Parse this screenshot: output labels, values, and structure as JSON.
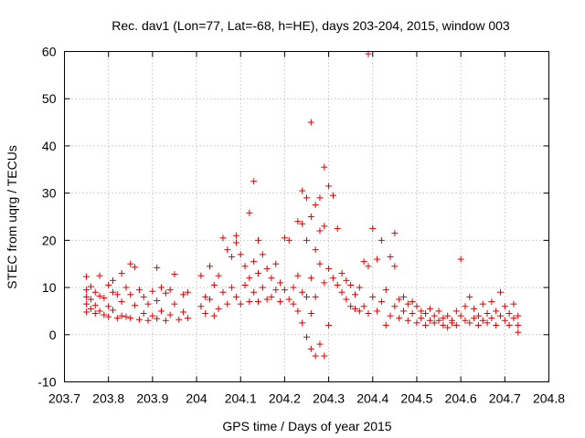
{
  "chart_data": {
    "type": "scatter",
    "title": "Rec. dav1 (Lon=77, Lat=-68, h=HE), days 203-204, 2015, window 003",
    "xlabel": "GPS time / Days of year 2015",
    "ylabel": "STEC from uqrg / TECUs",
    "xlim": [
      203.7,
      204.8
    ],
    "ylim": [
      -10,
      60
    ],
    "x_ticks": [
      203.7,
      203.8,
      203.9,
      204.0,
      204.1,
      204.2,
      204.3,
      204.4,
      204.5,
      204.6,
      204.7,
      204.8
    ],
    "x_tick_labels": [
      "203.7",
      "203.8",
      "203.9",
      "204",
      "204.1",
      "204.2",
      "204.3",
      "204.4",
      "204.5",
      "204.6",
      "204.7",
      "204.8"
    ],
    "y_ticks": [
      -10,
      0,
      10,
      20,
      30,
      40,
      50,
      60
    ],
    "y_tick_labels": [
      "-10",
      "0",
      "10",
      "20",
      "30",
      "40",
      "50",
      "60"
    ],
    "grid": true,
    "marker": "plus",
    "color": "#dd0000",
    "series": [
      {
        "points": [
          [
            203.75,
            12.3
          ],
          [
            203.75,
            9.5
          ],
          [
            203.75,
            8.0
          ],
          [
            203.75,
            6.5
          ],
          [
            203.75,
            4.8
          ],
          [
            203.76,
            10.2
          ],
          [
            203.76,
            7.5
          ],
          [
            203.76,
            5.5
          ],
          [
            203.77,
            9.0
          ],
          [
            203.77,
            6.2
          ],
          [
            203.77,
            4.5
          ],
          [
            203.78,
            12.5
          ],
          [
            203.78,
            8.2
          ],
          [
            203.78,
            5.0
          ],
          [
            203.79,
            7.8
          ],
          [
            203.79,
            4.2
          ],
          [
            203.8,
            10.5
          ],
          [
            203.8,
            6.0
          ],
          [
            203.8,
            3.8
          ],
          [
            203.81,
            11.5
          ],
          [
            203.81,
            9.0
          ],
          [
            203.81,
            5.2
          ],
          [
            203.82,
            8.5
          ],
          [
            203.82,
            3.5
          ],
          [
            203.83,
            13.0
          ],
          [
            203.83,
            7.0
          ],
          [
            203.83,
            4.0
          ],
          [
            203.84,
            10.0
          ],
          [
            203.84,
            3.8
          ],
          [
            203.85,
            15.0
          ],
          [
            203.85,
            8.5
          ],
          [
            203.85,
            3.5
          ],
          [
            203.86,
            14.3
          ],
          [
            203.86,
            6.2
          ],
          [
            203.87,
            9.5
          ],
          [
            203.87,
            3.2
          ],
          [
            203.88,
            8.0
          ],
          [
            203.88,
            4.5
          ],
          [
            203.89,
            6.5
          ],
          [
            203.89,
            3.0
          ],
          [
            203.9,
            9.2
          ],
          [
            203.9,
            4.0
          ],
          [
            203.91,
            14.2
          ],
          [
            203.91,
            7.2
          ],
          [
            203.91,
            3.4
          ],
          [
            203.92,
            10.0
          ],
          [
            203.92,
            5.0
          ],
          [
            203.93,
            8.8
          ],
          [
            203.93,
            3.0
          ],
          [
            203.94,
            9.5
          ],
          [
            203.94,
            4.2
          ],
          [
            203.95,
            12.8
          ],
          [
            203.95,
            6.5
          ],
          [
            203.96,
            3.2
          ],
          [
            203.97,
            8.5
          ],
          [
            203.97,
            4.8
          ],
          [
            203.98,
            9.0
          ],
          [
            203.98,
            3.5
          ],
          [
            204.01,
            12.5
          ],
          [
            204.01,
            6.0
          ],
          [
            204.02,
            8.0
          ],
          [
            204.02,
            4.5
          ],
          [
            204.03,
            14.5
          ],
          [
            204.03,
            7.5
          ],
          [
            204.04,
            10.5
          ],
          [
            204.04,
            4.0
          ],
          [
            204.05,
            12.5
          ],
          [
            204.05,
            5.5
          ],
          [
            204.06,
            20.5
          ],
          [
            204.06,
            9.0
          ],
          [
            204.07,
            18.0
          ],
          [
            204.07,
            6.5
          ],
          [
            204.08,
            16.5
          ],
          [
            204.08,
            10.0
          ],
          [
            204.09,
            21.0
          ],
          [
            204.09,
            19.5
          ],
          [
            204.09,
            8.0
          ],
          [
            204.1,
            17.0
          ],
          [
            204.1,
            6.5
          ],
          [
            204.11,
            14.5
          ],
          [
            204.11,
            10.5
          ],
          [
            204.12,
            25.8
          ],
          [
            204.12,
            12.0
          ],
          [
            204.12,
            7.0
          ],
          [
            204.13,
            32.5
          ],
          [
            204.13,
            15.5
          ],
          [
            204.13,
            9.0
          ],
          [
            204.14,
            20.0
          ],
          [
            204.14,
            13.0
          ],
          [
            204.14,
            7.0
          ],
          [
            204.15,
            17.0
          ],
          [
            204.15,
            10.0
          ],
          [
            204.16,
            14.0
          ],
          [
            204.16,
            7.5
          ],
          [
            204.17,
            12.0
          ],
          [
            204.17,
            8.0
          ],
          [
            204.18,
            15.0
          ],
          [
            204.18,
            9.5
          ],
          [
            204.19,
            11.0
          ],
          [
            204.19,
            7.0
          ],
          [
            204.2,
            20.5
          ],
          [
            204.2,
            9.5
          ],
          [
            204.21,
            20.0
          ],
          [
            204.21,
            7.5
          ],
          [
            204.22,
            10.0
          ],
          [
            204.22,
            6.5
          ],
          [
            204.23,
            24.0
          ],
          [
            204.23,
            12.5
          ],
          [
            204.23,
            5.0
          ],
          [
            204.24,
            30.5
          ],
          [
            204.24,
            23.5
          ],
          [
            204.24,
            9.0
          ],
          [
            204.24,
            2.5
          ],
          [
            204.25,
            29.0
          ],
          [
            204.25,
            20.0
          ],
          [
            204.25,
            8.0
          ],
          [
            204.25,
            -0.5
          ],
          [
            204.26,
            45.0
          ],
          [
            204.26,
            25.0
          ],
          [
            204.26,
            12.0
          ],
          [
            204.26,
            4.5
          ],
          [
            204.26,
            -3.0
          ],
          [
            204.27,
            27.5
          ],
          [
            204.27,
            18.0
          ],
          [
            204.27,
            8.0
          ],
          [
            204.27,
            -4.5
          ],
          [
            204.28,
            29.0
          ],
          [
            204.28,
            22.0
          ],
          [
            204.28,
            15.0
          ],
          [
            204.28,
            -2.0
          ],
          [
            204.29,
            35.5
          ],
          [
            204.29,
            23.0
          ],
          [
            204.29,
            11.0
          ],
          [
            204.29,
            -4.5
          ],
          [
            204.3,
            31.5
          ],
          [
            204.3,
            14.0
          ],
          [
            204.3,
            2.0
          ],
          [
            204.31,
            29.5
          ],
          [
            204.31,
            12.0
          ],
          [
            204.32,
            22.5
          ],
          [
            204.32,
            10.5
          ],
          [
            204.33,
            13.0
          ],
          [
            204.33,
            9.0
          ],
          [
            204.34,
            11.5
          ],
          [
            204.34,
            7.5
          ],
          [
            204.35,
            10.5
          ],
          [
            204.35,
            6.0
          ],
          [
            204.36,
            8.5
          ],
          [
            204.36,
            5.5
          ],
          [
            204.37,
            10.0
          ],
          [
            204.37,
            5.0
          ],
          [
            204.38,
            15.5
          ],
          [
            204.38,
            6.0
          ],
          [
            204.39,
            59.5
          ],
          [
            204.39,
            14.5
          ],
          [
            204.39,
            4.5
          ],
          [
            204.4,
            22.5
          ],
          [
            204.4,
            8.0
          ],
          [
            204.41,
            16.0
          ],
          [
            204.41,
            5.0
          ],
          [
            204.42,
            20.0
          ],
          [
            204.42,
            7.0
          ],
          [
            204.43,
            9.5
          ],
          [
            204.43,
            2.0
          ],
          [
            204.44,
            16.5
          ],
          [
            204.44,
            4.0
          ],
          [
            204.45,
            21.5
          ],
          [
            204.45,
            14.5
          ],
          [
            204.45,
            6.0
          ],
          [
            204.46,
            7.5
          ],
          [
            204.46,
            3.5
          ],
          [
            204.47,
            8.0
          ],
          [
            204.47,
            5.0
          ],
          [
            204.48,
            6.5
          ],
          [
            204.48,
            3.0
          ],
          [
            204.49,
            7.0
          ],
          [
            204.49,
            4.5
          ],
          [
            204.5,
            6.0
          ],
          [
            204.5,
            2.5
          ],
          [
            204.51,
            5.0
          ],
          [
            204.51,
            3.5
          ],
          [
            204.52,
            4.5
          ],
          [
            204.52,
            2.0
          ],
          [
            204.53,
            5.5
          ],
          [
            204.53,
            3.0
          ],
          [
            204.54,
            4.0
          ],
          [
            204.54,
            2.5
          ],
          [
            204.55,
            5.0
          ],
          [
            204.55,
            3.0
          ],
          [
            204.56,
            3.5
          ],
          [
            204.56,
            2.0
          ],
          [
            204.57,
            4.0
          ],
          [
            204.57,
            1.5
          ],
          [
            204.58,
            3.0
          ],
          [
            204.58,
            2.5
          ],
          [
            204.59,
            5.0
          ],
          [
            204.59,
            2.0
          ],
          [
            204.6,
            16.0
          ],
          [
            204.6,
            4.0
          ],
          [
            204.61,
            6.0
          ],
          [
            204.61,
            3.0
          ],
          [
            204.62,
            8.0
          ],
          [
            204.62,
            2.5
          ],
          [
            204.63,
            5.5
          ],
          [
            204.63,
            3.5
          ],
          [
            204.64,
            4.0
          ],
          [
            204.64,
            2.0
          ],
          [
            204.65,
            6.5
          ],
          [
            204.65,
            3.0
          ],
          [
            204.66,
            4.5
          ],
          [
            204.66,
            2.5
          ],
          [
            204.67,
            7.0
          ],
          [
            204.67,
            3.5
          ],
          [
            204.68,
            5.0
          ],
          [
            204.68,
            2.0
          ],
          [
            204.69,
            9.0
          ],
          [
            204.69,
            4.0
          ],
          [
            204.7,
            6.0
          ],
          [
            204.7,
            3.0
          ],
          [
            204.71,
            4.5
          ],
          [
            204.71,
            2.0
          ],
          [
            204.72,
            6.5
          ],
          [
            204.72,
            3.5
          ],
          [
            204.73,
            4.0
          ],
          [
            204.73,
            2.0
          ],
          [
            204.73,
            0.5
          ]
        ]
      }
    ]
  }
}
